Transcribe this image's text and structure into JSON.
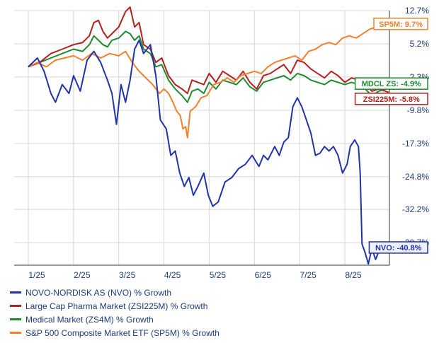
{
  "chart_data": {
    "type": "line",
    "x_labels": [
      "1/25",
      "2/25",
      "3/25",
      "4/25",
      "5/25",
      "6/25",
      "7/25",
      "8/25"
    ],
    "ytick_labels": [
      "12.7%",
      "5.2%",
      "-2.3%",
      "-9.8%",
      "-17.3%",
      "-24.8%",
      "-32.2%",
      "-39.7%"
    ],
    "yticks": [
      12.7,
      5.2,
      -2.3,
      -9.8,
      -17.3,
      -24.8,
      -32.2,
      -39.7
    ],
    "ylim": [
      -44.8,
      12.7
    ],
    "grid": true,
    "legend_position": "bottom-left",
    "series": [
      {
        "name": "NOVO-NORDISK AS (NVO) % Growth",
        "tag": "NVO: -40.8%",
        "color": "#2233aa",
        "points": [
          [
            0.0,
            0.0
          ],
          [
            0.2,
            2.0
          ],
          [
            0.35,
            -1.0
          ],
          [
            0.5,
            -6.0
          ],
          [
            0.6,
            -8.0
          ],
          [
            0.75,
            -4.0
          ],
          [
            0.9,
            -6.0
          ],
          [
            1.0,
            -2.0
          ],
          [
            1.15,
            -5.5
          ],
          [
            1.3,
            1.5
          ],
          [
            1.45,
            3.5
          ],
          [
            1.6,
            1.0
          ],
          [
            1.75,
            -3.0
          ],
          [
            1.85,
            -6.0
          ],
          [
            1.95,
            -13.0
          ],
          [
            2.05,
            -4.0
          ],
          [
            2.15,
            -8.0
          ],
          [
            2.25,
            -3.0
          ],
          [
            2.35,
            4.0
          ],
          [
            2.45,
            6.0
          ],
          [
            2.55,
            3.0
          ],
          [
            2.7,
            5.0
          ],
          [
            2.82,
            -2.0
          ],
          [
            2.92,
            -12.0
          ],
          [
            3.05,
            -14.0
          ],
          [
            3.15,
            -20.0
          ],
          [
            3.25,
            -19.0
          ],
          [
            3.35,
            -24.0
          ],
          [
            3.45,
            -27.0
          ],
          [
            3.55,
            -25.0
          ],
          [
            3.65,
            -29.0
          ],
          [
            3.75,
            -27.0
          ],
          [
            3.88,
            -24.0
          ],
          [
            3.98,
            -29.0
          ],
          [
            4.08,
            -31.5
          ],
          [
            4.2,
            -30.5
          ],
          [
            4.35,
            -26.0
          ],
          [
            4.5,
            -25.0
          ],
          [
            4.65,
            -23.0
          ],
          [
            4.8,
            -22.0
          ],
          [
            4.95,
            -20.0
          ],
          [
            5.1,
            -22.5
          ],
          [
            5.2,
            -20.0
          ],
          [
            5.3,
            -21.0
          ],
          [
            5.45,
            -18.0
          ],
          [
            5.55,
            -20.0
          ],
          [
            5.65,
            -17.0
          ],
          [
            5.75,
            -16.0
          ],
          [
            5.85,
            -9.0
          ],
          [
            5.95,
            -7.0
          ],
          [
            6.05,
            -9.0
          ],
          [
            6.15,
            -12.0
          ],
          [
            6.25,
            -15.0
          ],
          [
            6.35,
            -20.0
          ],
          [
            6.45,
            -19.5
          ],
          [
            6.55,
            -18.0
          ],
          [
            6.65,
            -19.0
          ],
          [
            6.75,
            -18.0
          ],
          [
            6.85,
            -20.0
          ],
          [
            6.95,
            -24.0
          ],
          [
            7.05,
            -22.0
          ],
          [
            7.12,
            -18.0
          ],
          [
            7.22,
            -16.5
          ],
          [
            7.3,
            -18.0
          ],
          [
            7.34,
            -24.0
          ],
          [
            7.38,
            -40.0
          ],
          [
            7.45,
            -42.0
          ],
          [
            7.52,
            -44.5
          ],
          [
            7.6,
            -41.0
          ],
          [
            7.68,
            -43.5
          ],
          [
            7.78,
            -41.0
          ],
          [
            7.88,
            -42.0
          ],
          [
            7.97,
            -40.8
          ]
        ]
      },
      {
        "name": "Large Cap Pharma Market (ZSI225M) % Growth",
        "tag": "ZSI225M: -5.8%",
        "color": "#b32020",
        "points": [
          [
            0.0,
            0.0
          ],
          [
            0.25,
            1.0
          ],
          [
            0.5,
            3.0
          ],
          [
            0.75,
            4.0
          ],
          [
            1.0,
            5.0
          ],
          [
            1.2,
            5.5
          ],
          [
            1.35,
            7.0
          ],
          [
            1.45,
            10.0
          ],
          [
            1.55,
            10.5
          ],
          [
            1.65,
            8.0
          ],
          [
            1.75,
            6.5
          ],
          [
            1.85,
            7.5
          ],
          [
            2.0,
            9.0
          ],
          [
            2.15,
            12.5
          ],
          [
            2.25,
            13.5
          ],
          [
            2.35,
            9.0
          ],
          [
            2.45,
            10.0
          ],
          [
            2.55,
            5.0
          ],
          [
            2.7,
            4.0
          ],
          [
            2.82,
            1.0
          ],
          [
            2.95,
            2.0
          ],
          [
            3.1,
            -2.0
          ],
          [
            3.25,
            -4.0
          ],
          [
            3.4,
            -5.0
          ],
          [
            3.52,
            -6.0
          ],
          [
            3.62,
            -3.0
          ],
          [
            3.75,
            -3.5
          ],
          [
            3.88,
            -4.0
          ],
          [
            4.0,
            -1.5
          ],
          [
            4.15,
            -3.5
          ],
          [
            4.3,
            -1.0
          ],
          [
            4.45,
            -2.0
          ],
          [
            4.6,
            -3.0
          ],
          [
            4.75,
            -1.0
          ],
          [
            4.9,
            -3.5
          ],
          [
            5.05,
            -5.0
          ],
          [
            5.2,
            -2.0
          ],
          [
            5.35,
            -1.5
          ],
          [
            5.5,
            -0.5
          ],
          [
            5.65,
            0.5
          ],
          [
            5.8,
            -1.5
          ],
          [
            5.95,
            1.5
          ],
          [
            6.1,
            1.0
          ],
          [
            6.25,
            -0.5
          ],
          [
            6.4,
            -1.5
          ],
          [
            6.55,
            -2.5
          ],
          [
            6.7,
            -1.0
          ],
          [
            6.85,
            -2.0
          ],
          [
            7.0,
            -3.5
          ],
          [
            7.15,
            -2.5
          ],
          [
            7.3,
            -3.0
          ],
          [
            7.45,
            -4.0
          ],
          [
            7.6,
            -5.5
          ],
          [
            7.75,
            -5.0
          ],
          [
            7.9,
            -5.5
          ],
          [
            7.97,
            -5.8
          ]
        ]
      },
      {
        "name": "Medical Market (ZS4M) % Growth",
        "tag": "MDCL ZS: -4.9%",
        "color": "#1f8a2e",
        "points": [
          [
            0.0,
            0.0
          ],
          [
            0.25,
            1.0
          ],
          [
            0.5,
            2.0
          ],
          [
            0.75,
            3.0
          ],
          [
            1.0,
            4.0
          ],
          [
            1.2,
            3.5
          ],
          [
            1.35,
            5.0
          ],
          [
            1.45,
            7.0
          ],
          [
            1.55,
            6.0
          ],
          [
            1.65,
            5.0
          ],
          [
            1.75,
            4.5
          ],
          [
            1.85,
            6.0
          ],
          [
            2.0,
            6.5
          ],
          [
            2.15,
            8.0
          ],
          [
            2.25,
            7.5
          ],
          [
            2.35,
            6.0
          ],
          [
            2.45,
            7.0
          ],
          [
            2.55,
            4.0
          ],
          [
            2.7,
            3.0
          ],
          [
            2.82,
            0.0
          ],
          [
            2.95,
            0.5
          ],
          [
            3.1,
            -3.0
          ],
          [
            3.25,
            -5.0
          ],
          [
            3.4,
            -6.5
          ],
          [
            3.52,
            -8.0
          ],
          [
            3.62,
            -5.5
          ],
          [
            3.75,
            -5.0
          ],
          [
            3.88,
            -6.0
          ],
          [
            4.0,
            -3.5
          ],
          [
            4.15,
            -5.0
          ],
          [
            4.3,
            -3.0
          ],
          [
            4.45,
            -3.5
          ],
          [
            4.6,
            -4.0
          ],
          [
            4.75,
            -2.5
          ],
          [
            4.9,
            -4.5
          ],
          [
            5.05,
            -5.5
          ],
          [
            5.2,
            -3.5
          ],
          [
            5.35,
            -3.0
          ],
          [
            5.5,
            -2.5
          ],
          [
            5.65,
            -2.0
          ],
          [
            5.8,
            -3.0
          ],
          [
            5.95,
            -1.5
          ],
          [
            6.1,
            -2.0
          ],
          [
            6.25,
            -3.0
          ],
          [
            6.4,
            -3.5
          ],
          [
            6.55,
            -4.0
          ],
          [
            6.7,
            -3.0
          ],
          [
            6.85,
            -3.5
          ],
          [
            7.0,
            -4.0
          ],
          [
            7.15,
            -3.5
          ],
          [
            7.3,
            -4.0
          ],
          [
            7.45,
            -5.0
          ],
          [
            7.6,
            -6.5
          ],
          [
            7.75,
            -5.5
          ],
          [
            7.9,
            -5.0
          ],
          [
            7.97,
            -4.9
          ]
        ]
      },
      {
        "name": "S&P 500 Composite Market ETF (SP5M) % Growth",
        "tag": "SP5M: 9.7%",
        "color": "#f57f2a",
        "points": [
          [
            0.0,
            0.0
          ],
          [
            0.2,
            1.0
          ],
          [
            0.4,
            0.0
          ],
          [
            0.6,
            1.5
          ],
          [
            0.8,
            2.0
          ],
          [
            1.0,
            2.5
          ],
          [
            1.2,
            1.5
          ],
          [
            1.4,
            3.0
          ],
          [
            1.6,
            2.0
          ],
          [
            1.8,
            3.0
          ],
          [
            2.0,
            2.5
          ],
          [
            2.15,
            3.5
          ],
          [
            2.3,
            1.0
          ],
          [
            2.45,
            -1.0
          ],
          [
            2.6,
            -2.5
          ],
          [
            2.75,
            -4.0
          ],
          [
            2.9,
            -6.0
          ],
          [
            3.0,
            -5.0
          ],
          [
            3.1,
            -6.0
          ],
          [
            3.2,
            -8.0
          ],
          [
            3.28,
            -10.0
          ],
          [
            3.36,
            -11.0
          ],
          [
            3.42,
            -14.0
          ],
          [
            3.48,
            -13.5
          ],
          [
            3.52,
            -16.0
          ],
          [
            3.58,
            -10.0
          ],
          [
            3.7,
            -9.0
          ],
          [
            3.82,
            -7.0
          ],
          [
            3.95,
            -6.5
          ],
          [
            4.1,
            -4.0
          ],
          [
            4.25,
            -3.5
          ],
          [
            4.4,
            -2.5
          ],
          [
            4.55,
            -3.5
          ],
          [
            4.7,
            -2.0
          ],
          [
            4.85,
            -1.5
          ],
          [
            5.0,
            -1.0
          ],
          [
            5.15,
            -1.5
          ],
          [
            5.3,
            0.0
          ],
          [
            5.45,
            1.0
          ],
          [
            5.6,
            1.5
          ],
          [
            5.75,
            2.0
          ],
          [
            5.9,
            2.5
          ],
          [
            6.05,
            1.5
          ],
          [
            6.2,
            3.5
          ],
          [
            6.35,
            4.0
          ],
          [
            6.5,
            5.0
          ],
          [
            6.65,
            5.5
          ],
          [
            6.8,
            5.0
          ],
          [
            6.95,
            6.5
          ],
          [
            7.1,
            7.0
          ],
          [
            7.25,
            6.5
          ],
          [
            7.4,
            7.5
          ],
          [
            7.55,
            8.5
          ],
          [
            7.7,
            9.0
          ],
          [
            7.85,
            9.5
          ],
          [
            7.97,
            9.7
          ]
        ]
      }
    ]
  }
}
